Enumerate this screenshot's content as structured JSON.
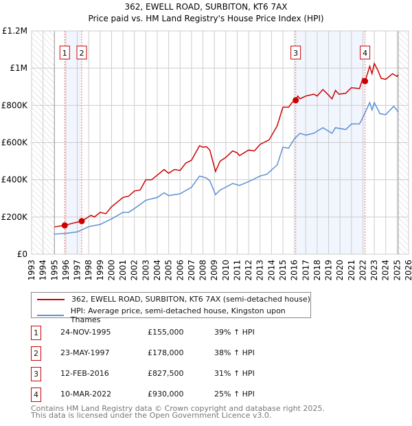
{
  "chart_data": {
    "type": "line",
    "title": "362, EWELL ROAD, SURBITON, KT6 7AX",
    "subtitle": "Price paid vs. HM Land Registry's House Price Index (HPI)",
    "xlim": [
      1993,
      2026
    ],
    "ylim": [
      0,
      1200000
    ],
    "x_ticks": [
      "1993",
      "1994",
      "1995",
      "1996",
      "1997",
      "1998",
      "1999",
      "2000",
      "2001",
      "2002",
      "2003",
      "2004",
      "2005",
      "2006",
      "2007",
      "2008",
      "2009",
      "2010",
      "2011",
      "2012",
      "2013",
      "2014",
      "2015",
      "2016",
      "2017",
      "2018",
      "2019",
      "2020",
      "2021",
      "2022",
      "2023",
      "2024",
      "2025",
      "2026"
    ],
    "y_ticks": [
      {
        "v": 0,
        "label": "£0"
      },
      {
        "v": 200000,
        "label": "£200K"
      },
      {
        "v": 400000,
        "label": "£400K"
      },
      {
        "v": 600000,
        "label": "£600K"
      },
      {
        "v": 800000,
        "label": "£800K"
      },
      {
        "v": 1000000,
        "label": "£1M"
      },
      {
        "v": 1200000,
        "label": "£1.2M"
      }
    ],
    "grid": true,
    "hatched_ranges": [
      [
        1993,
        1995
      ],
      [
        2025.1,
        2026
      ]
    ],
    "shaded_ranges": [
      [
        1995.9,
        1997.4
      ],
      [
        2016.12,
        2022.19
      ]
    ],
    "series": [
      {
        "name": "362, EWELL ROAD, SURBITON, KT6 7AX (semi-detached house)",
        "color": "#cc0000",
        "x": [
          1995.0,
          1995.9,
          1996.5,
          1997.4,
          1998.2,
          1998.5,
          1999.0,
          1999.5,
          2000.0,
          2001.0,
          2001.5,
          2002.0,
          2002.5,
          2003.0,
          2003.5,
          2004.0,
          2004.6,
          2005.0,
          2005.5,
          2006.0,
          2006.5,
          2007.0,
          2007.7,
          2008.0,
          2008.3,
          2008.6,
          2009.1,
          2009.5,
          2010.0,
          2010.6,
          2011.0,
          2011.2,
          2012.0,
          2012.5,
          2013.0,
          2013.8,
          2014.5,
          2015.0,
          2015.5,
          2015.8,
          2016.1,
          2016.3,
          2016.5,
          2017.0,
          2017.7,
          2018.0,
          2018.5,
          2019.0,
          2019.3,
          2019.6,
          2019.9,
          2020.5,
          2021.0,
          2021.7,
          2022.0,
          2022.2,
          2022.6,
          2022.8,
          2023.0,
          2023.3,
          2023.6,
          2024.0,
          2024.6,
          2025.0,
          2025.1
        ],
        "y": [
          147000,
          155000,
          165000,
          178000,
          209000,
          200000,
          225000,
          218000,
          255000,
          305000,
          312000,
          340000,
          345000,
          400000,
          400000,
          425000,
          455000,
          435000,
          455000,
          450000,
          490000,
          505000,
          583000,
          575000,
          578000,
          560000,
          445000,
          500000,
          520000,
          555000,
          545000,
          530000,
          560000,
          555000,
          590000,
          615000,
          690000,
          790000,
          790000,
          815000,
          827500,
          850000,
          835000,
          850000,
          860000,
          850000,
          885000,
          855000,
          835000,
          880000,
          860000,
          865000,
          895000,
          890000,
          945000,
          930000,
          1010000,
          970000,
          1025000,
          990000,
          945000,
          940000,
          970000,
          955000,
          965000
        ]
      },
      {
        "name": "HPI: Average price, semi-detached house, Kingston upon Thames",
        "color": "#5b8fd4",
        "x": [
          1995.0,
          1996.0,
          1997.0,
          1998.0,
          1999.0,
          2000.0,
          2001.0,
          2001.5,
          2002.0,
          2003.0,
          2004.0,
          2004.6,
          2005.0,
          2006.0,
          2007.0,
          2007.7,
          2008.3,
          2008.6,
          2009.1,
          2009.5,
          2010.0,
          2010.6,
          2011.2,
          2012.0,
          2013.0,
          2013.6,
          2014.5,
          2015.0,
          2015.5,
          2016.0,
          2016.5,
          2017.0,
          2017.7,
          2018.5,
          2019.3,
          2019.6,
          2020.5,
          2021.0,
          2021.7,
          2022.0,
          2022.6,
          2022.8,
          2023.0,
          2023.5,
          2024.0,
          2024.7,
          2025.1
        ],
        "y": [
          108000,
          112000,
          120000,
          148000,
          160000,
          190000,
          225000,
          225000,
          245000,
          290000,
          305000,
          330000,
          315000,
          325000,
          360000,
          420000,
          410000,
          395000,
          320000,
          345000,
          360000,
          380000,
          370000,
          390000,
          420000,
          430000,
          480000,
          575000,
          570000,
          620000,
          650000,
          640000,
          650000,
          680000,
          650000,
          680000,
          670000,
          700000,
          700000,
          735000,
          815000,
          775000,
          815000,
          755000,
          750000,
          795000,
          765000
        ]
      }
    ],
    "sales": [
      {
        "n": "1",
        "x": 1995.9,
        "y": 155000,
        "date": "24-NOV-1995",
        "price": "£155,000",
        "hpi": "39% ↑ HPI"
      },
      {
        "n": "2",
        "x": 1997.39,
        "y": 178000,
        "date": "23-MAY-1997",
        "price": "£178,000",
        "hpi": "38% ↑ HPI"
      },
      {
        "n": "3",
        "x": 2016.12,
        "y": 827500,
        "date": "12-FEB-2016",
        "price": "£827,500",
        "hpi": "31% ↑ HPI"
      },
      {
        "n": "4",
        "x": 2022.19,
        "y": 930000,
        "date": "10-MAR-2022",
        "price": "£930,000",
        "hpi": "25% ↑ HPI"
      }
    ],
    "legend_placement": "below"
  },
  "footer": {
    "line1": "Contains HM Land Registry data © Crown copyright and database right 2025.",
    "line2": "This data is licensed under the Open Government Licence v3.0."
  }
}
